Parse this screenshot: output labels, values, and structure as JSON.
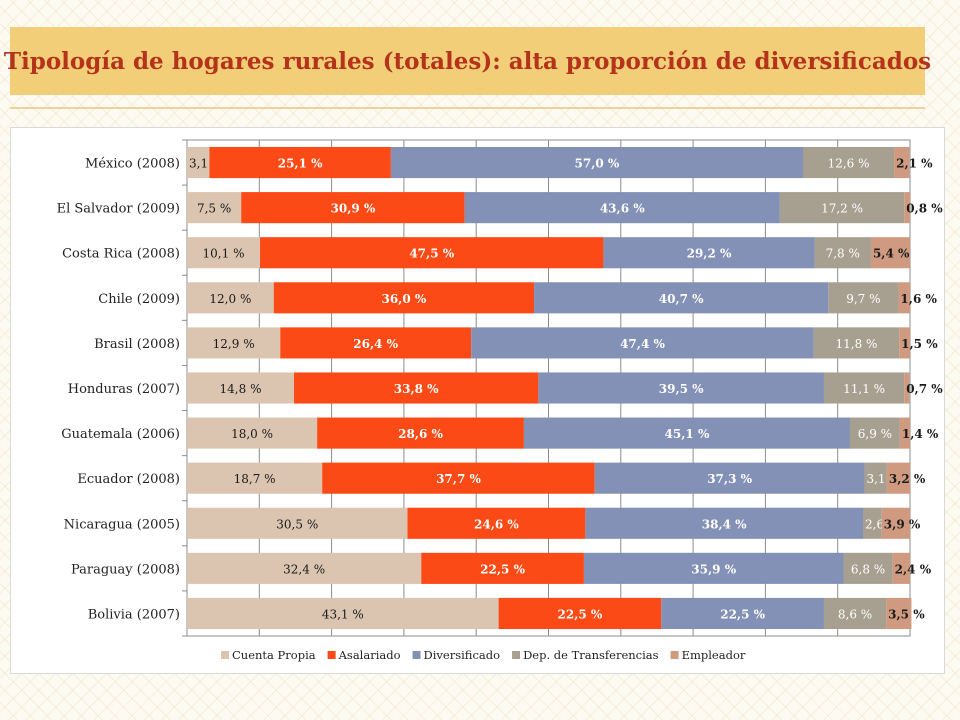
{
  "header": {
    "title": "Tipología de hogares rurales (totales): alta proporción de diversificados"
  },
  "colors": {
    "title_text": "#b4331a",
    "title_background": "#f2ce79",
    "series": [
      "#dbc5b1",
      "#fc4a16",
      "#8491b7",
      "#a79f90",
      "#cf9a7f"
    ]
  },
  "chart_data": {
    "type": "bar",
    "orientation": "horizontal",
    "stacked": true,
    "percent_stacked": true,
    "xlim": [
      0,
      100
    ],
    "grid": true,
    "legend_position": "bottom",
    "categories": [
      "México (2008)",
      "El Salvador (2009)",
      "Costa Rica (2008)",
      "Chile (2009)",
      "Brasil (2008)",
      "Honduras (2007)",
      "Guatemala (2006)",
      "Ecuador (2008)",
      "Nicaragua (2005)",
      "Paraguay (2008)",
      "Bolivia (2007)"
    ],
    "series": [
      {
        "name": "Cuenta Propia",
        "values": [
          3.1,
          7.5,
          10.1,
          12.0,
          12.9,
          14.8,
          18.0,
          18.7,
          30.5,
          32.4,
          43.1
        ],
        "labels": [
          "3,1 %",
          "7,5 %",
          "10,1 %",
          "12,0 %",
          "12,9 %",
          "14,8 %",
          "18,0 %",
          "18,7 %",
          "30,5 %",
          "32,4 %",
          "43,1 %"
        ]
      },
      {
        "name": "Asalariado",
        "values": [
          25.1,
          30.9,
          47.5,
          36.0,
          26.4,
          33.8,
          28.6,
          37.7,
          24.6,
          22.5,
          22.5
        ],
        "labels": [
          "25,1 %",
          "30,9 %",
          "47,5 %",
          "36,0 %",
          "26,4 %",
          "33,8 %",
          "28,6 %",
          "37,7 %",
          "24,6 %",
          "22,5 %",
          "22,5 %"
        ]
      },
      {
        "name": "Diversificado",
        "values": [
          57.0,
          43.6,
          29.2,
          40.7,
          47.4,
          39.5,
          45.1,
          37.3,
          38.4,
          35.9,
          22.5
        ],
        "labels": [
          "57,0 %",
          "43,6 %",
          "29,2 %",
          "40,7 %",
          "47,4 %",
          "39,5 %",
          "45,1 %",
          "37,3 %",
          "38,4 %",
          "35,9 %",
          "22,5 %"
        ]
      },
      {
        "name": "Dep. de Transferencias",
        "values": [
          12.6,
          17.2,
          7.8,
          9.7,
          11.8,
          11.1,
          6.9,
          3.1,
          2.6,
          6.8,
          8.6
        ],
        "labels": [
          "12,6 %",
          "17,2 %",
          "7,8 %",
          "9,7 %",
          "11,8 %",
          "11,1 %",
          "6,9  %",
          "3,1 %",
          "2,6 %",
          "6,8 %",
          "8,6 %"
        ]
      },
      {
        "name": "Empleador",
        "values": [
          2.1,
          0.8,
          5.4,
          1.6,
          1.5,
          0.7,
          1.4,
          3.2,
          3.9,
          2.4,
          3.5
        ],
        "labels": [
          "2,1 %",
          "0,8 %",
          "5,4 %",
          "1,6 %",
          "1,5 %",
          "0,7 %",
          "1,4 %",
          "3,2 %",
          "3,9 %",
          "2,4 %",
          "3,5 %"
        ]
      }
    ]
  }
}
